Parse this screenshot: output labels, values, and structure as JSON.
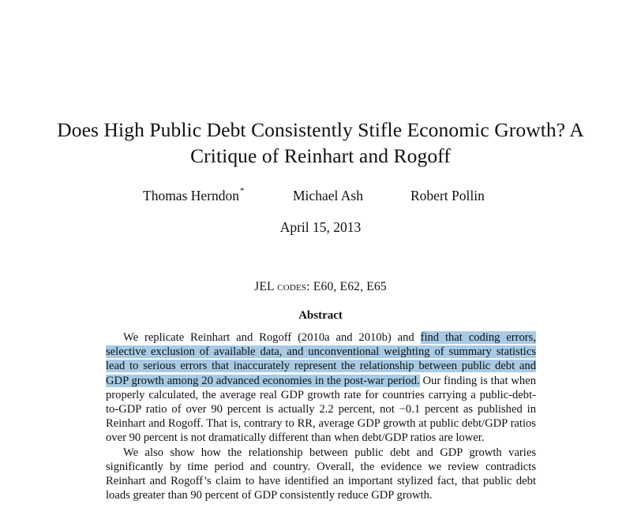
{
  "paper": {
    "title": "Does High Public Debt Consistently Stifle Economic Growth? A Critique of Reinhart and Rogoff",
    "authors": [
      {
        "name": "Thomas Herndon",
        "mark": "*"
      },
      {
        "name": "Michael Ash",
        "mark": ""
      },
      {
        "name": "Robert Pollin",
        "mark": ""
      }
    ],
    "date": "April 15, 2013",
    "jel": {
      "label": "JEL codes:",
      "codes": "E60, E62, E65"
    },
    "abstract": {
      "heading": "Abstract",
      "p1_before": "We replicate Reinhart and Rogoff (2010a and 2010b) and ",
      "p1_highlight": "find that coding errors, selective exclusion of available data, and unconventional weighting of summary statistics lead to serious errors that inaccurately represent the relationship between public debt and GDP growth among 20 advanced economies in the post-war period.",
      "p1_after": " Our finding is that when properly calculated, the average real GDP growth rate for countries carrying a public-debt-to-GDP ratio of over 90 percent is actually 2.2 percent, not −0.1 percent as published in Reinhart and Rogoff. That is, contrary to RR, average GDP growth at public debt/GDP ratios over 90 percent is not dramatically different than when debt/GDP ratios are lower.",
      "p2": "We also show how the relationship between public debt and GDP growth varies significantly by time period and country. Overall, the evidence we review contradicts Reinhart and Rogoff’s claim to have identified an important stylized fact, that public debt loads greater than 90 percent of GDP consistently reduce GDP growth."
    },
    "highlight_color": "#a7cbe6"
  }
}
